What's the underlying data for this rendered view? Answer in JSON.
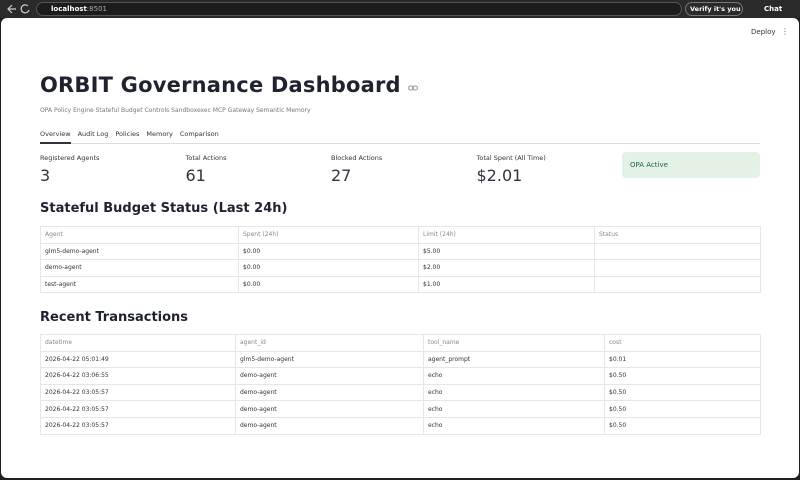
{
  "browser": {
    "url_host": "localhost",
    "url_port": ":8501",
    "profile_button": "Verify it's you",
    "chat_button": "Chat"
  },
  "app_toolbar": {
    "deploy": "Deploy"
  },
  "header": {
    "title": "ORBIT Governance Dashboard",
    "subtitle": "OPA Policy Engine Stateful Budget Controls Sandboxexec MCP Gateway Semantic Memory"
  },
  "tabs": [
    "Overview",
    "Audit Log",
    "Policies",
    "Memory",
    "Comparison"
  ],
  "metrics": [
    {
      "label": "Registered Agents",
      "value": 3
    },
    {
      "label": "Total Actions",
      "value": 61
    },
    {
      "label": "Blocked Actions",
      "value": 27
    },
    {
      "label": "Total Spent (All Time)",
      "value": "$2.01"
    }
  ],
  "status_badge": "OPA Active",
  "budget": {
    "heading": "Stateful Budget Status (Last 24h)",
    "columns": [
      "Agent",
      "Spent (24h)",
      "Limit (24h)",
      "Status"
    ],
    "rows": [
      [
        "glm5-demo-agent",
        "$0.00",
        "$5.00"
      ],
      [
        "demo-agent",
        "$0.00",
        "$2.00"
      ],
      [
        "test-agent",
        "$0.00",
        "$1.00"
      ]
    ]
  },
  "transactions": {
    "heading": "Recent Transactions",
    "columns": [
      "datetime",
      "agent_id",
      "tool_name",
      "cost"
    ],
    "rows": [
      [
        "2026-04-22 05:01:49",
        "glm5-demo-agent",
        "agent_prompt",
        "$0.01"
      ],
      [
        "2026-04-22 03:06:55",
        "demo-agent",
        "echo",
        "$0.50"
      ],
      [
        "2026-04-22 03:05:57",
        "demo-agent",
        "echo",
        "$0.50"
      ],
      [
        "2026-04-22 03:05:57",
        "demo-agent",
        "echo",
        "$0.50"
      ],
      [
        "2026-04-22 03:05:57",
        "demo-agent",
        "echo",
        "$0.50"
      ]
    ]
  }
}
